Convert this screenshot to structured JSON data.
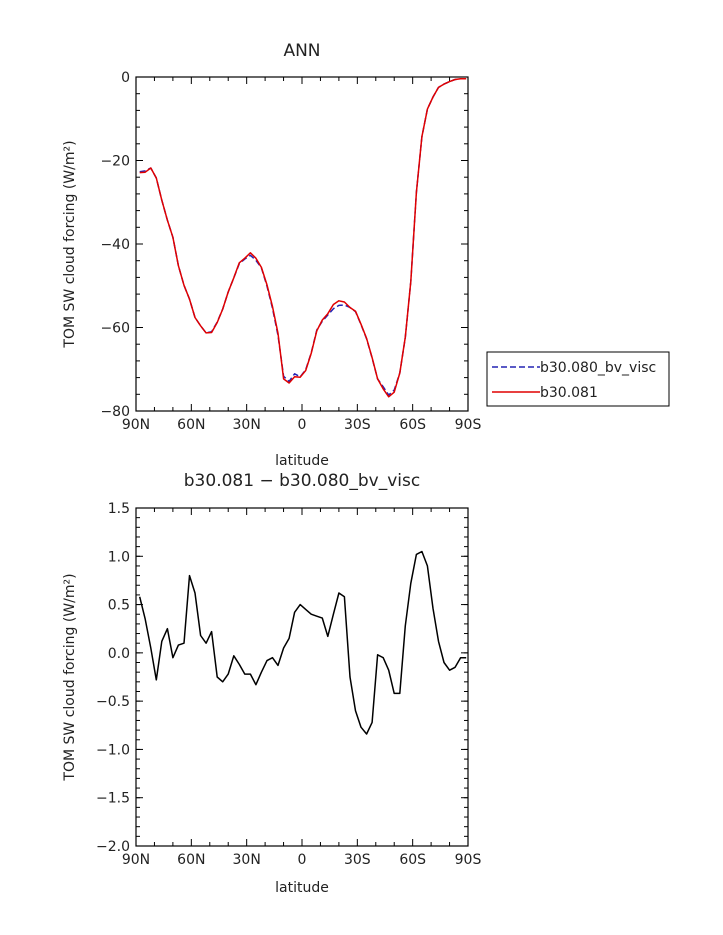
{
  "chart_data": [
    {
      "type": "line",
      "title": "ANN",
      "xlabel": "latitude",
      "ylabel": "TOM SW cloud forcing (W/m²)",
      "xlim": [
        90,
        -90
      ],
      "ylim": [
        -80,
        0
      ],
      "x_tick_values": [
        90,
        60,
        30,
        0,
        -30,
        -60,
        -90
      ],
      "x_tick_labels": [
        "90N",
        "60N",
        "30N",
        "0",
        "30S",
        "60S",
        "90S"
      ],
      "y_tick_values": [
        0,
        -20,
        -40,
        -60,
        -80
      ],
      "y_tick_labels": [
        "0",
        "−20",
        "−40",
        "−60",
        "−80"
      ],
      "legend_position": "right-bottom-outside",
      "x": [
        88,
        85,
        82,
        79,
        76,
        73,
        70,
        67,
        64,
        61,
        58,
        55,
        52,
        49,
        46,
        43,
        40,
        37,
        34,
        31,
        28,
        25,
        22,
        19,
        16,
        13,
        10,
        7,
        4,
        1,
        -2,
        -5,
        -8,
        -11,
        -14,
        -17,
        -20,
        -23,
        -26,
        -29,
        -32,
        -35,
        -38,
        -41,
        -44,
        -47,
        -50,
        -53,
        -56,
        -59,
        -62,
        -65,
        -68,
        -71,
        -74,
        -77,
        -80,
        -83,
        -86,
        -89
      ],
      "series": [
        {
          "name": "b30.080_bv_visc",
          "color": "#2424b4",
          "dash": "dashed",
          "values": [
            -22.7,
            -22.5,
            -21.8,
            -24.2,
            -29.5,
            -34.3,
            -38.4,
            -45.2,
            -49.9,
            -53.2,
            -57.6,
            -59.6,
            -61.3,
            -61.0,
            -58.7,
            -55.6,
            -51.5,
            -48.1,
            -44.7,
            -43.6,
            -42.7,
            -43.9,
            -45.7,
            -50.1,
            -55.4,
            -61.9,
            -71.7,
            -72.9,
            -71.1,
            -71.8,
            -70.1,
            -66.1,
            -60.6,
            -58.5,
            -57.0,
            -55.5,
            -54.7,
            -54.6,
            -55.2,
            -56.2,
            -59.3,
            -62.7,
            -67.3,
            -72.3,
            -74.2,
            -76.2,
            -75.0,
            -70.9,
            -62.4,
            -49.0,
            -27.6,
            -14.3,
            -7.7,
            -4.8,
            -2.5,
            -1.7,
            -1.1,
            -0.6,
            -0.4,
            -0.4
          ]
        },
        {
          "name": "b30.081",
          "color": "#e00000",
          "dash": "solid",
          "values": [
            -22.9,
            -22.8,
            -21.8,
            -24.2,
            -29.5,
            -34.3,
            -38.4,
            -45.2,
            -49.9,
            -53.2,
            -57.6,
            -59.6,
            -61.3,
            -61.2,
            -58.8,
            -55.6,
            -51.5,
            -48.1,
            -44.5,
            -43.4,
            -42.1,
            -43.4,
            -45.6,
            -49.8,
            -55.0,
            -61.4,
            -72.3,
            -73.3,
            -71.8,
            -71.9,
            -70.3,
            -66.2,
            -60.8,
            -58.2,
            -56.7,
            -54.5,
            -53.6,
            -53.9,
            -55.2,
            -56.1,
            -59.2,
            -62.6,
            -67.2,
            -72.3,
            -74.7,
            -76.6,
            -75.5,
            -70.9,
            -62.3,
            -49.0,
            -27.6,
            -14.3,
            -7.7,
            -4.8,
            -2.5,
            -1.7,
            -1.1,
            -0.6,
            -0.4,
            -0.4
          ]
        }
      ]
    },
    {
      "type": "line",
      "title": "b30.081 − b30.080_bv_visc",
      "xlabel": "latitude",
      "ylabel": "TOM SW cloud forcing (W/m²)",
      "xlim": [
        90,
        -90
      ],
      "ylim": [
        -2.0,
        1.5
      ],
      "x_tick_values": [
        90,
        60,
        30,
        0,
        -30,
        -60,
        -90
      ],
      "x_tick_labels": [
        "90N",
        "60N",
        "30N",
        "0",
        "30S",
        "60S",
        "90S"
      ],
      "y_tick_values": [
        1.5,
        1.0,
        0.5,
        0.0,
        -0.5,
        -1.0,
        -1.5,
        -2.0
      ],
      "y_tick_labels": [
        "1.5",
        "1.0",
        "0.5",
        "0.0",
        "−0.5",
        "−1.0",
        "−1.5",
        "−2.0"
      ],
      "x": [
        88,
        85,
        82,
        79,
        76,
        73,
        70,
        67,
        64,
        61,
        58,
        55,
        52,
        49,
        46,
        43,
        40,
        37,
        34,
        31,
        28,
        25,
        22,
        19,
        16,
        13,
        10,
        7,
        4,
        1,
        -2,
        -5,
        -8,
        -11,
        -14,
        -17,
        -20,
        -23,
        -26,
        -29,
        -32,
        -35,
        -38,
        -41,
        -44,
        -47,
        -50,
        -53,
        -56,
        -59,
        -62,
        -65,
        -68,
        -71,
        -74,
        -77,
        -80,
        -83,
        -86,
        -89
      ],
      "series": [
        {
          "color": "#000000",
          "values": [
            0.58,
            0.35,
            0.05,
            -0.28,
            0.12,
            0.25,
            -0.05,
            0.08,
            0.1,
            0.8,
            0.62,
            0.18,
            0.1,
            0.22,
            -0.25,
            -0.3,
            -0.22,
            -0.03,
            -0.12,
            -0.22,
            -0.22,
            -0.33,
            -0.2,
            -0.08,
            -0.05,
            -0.13,
            0.05,
            0.15,
            0.42,
            0.5,
            0.45,
            0.4,
            0.38,
            0.36,
            0.17,
            0.4,
            0.62,
            0.58,
            -0.25,
            -0.6,
            -0.77,
            -0.84,
            -0.72,
            -0.02,
            -0.05,
            -0.18,
            -0.42,
            -0.42,
            0.28,
            0.72,
            1.02,
            1.05,
            0.9,
            0.46,
            0.12,
            -0.1,
            -0.18,
            -0.15,
            -0.05,
            -0.05
          ]
        }
      ]
    }
  ]
}
